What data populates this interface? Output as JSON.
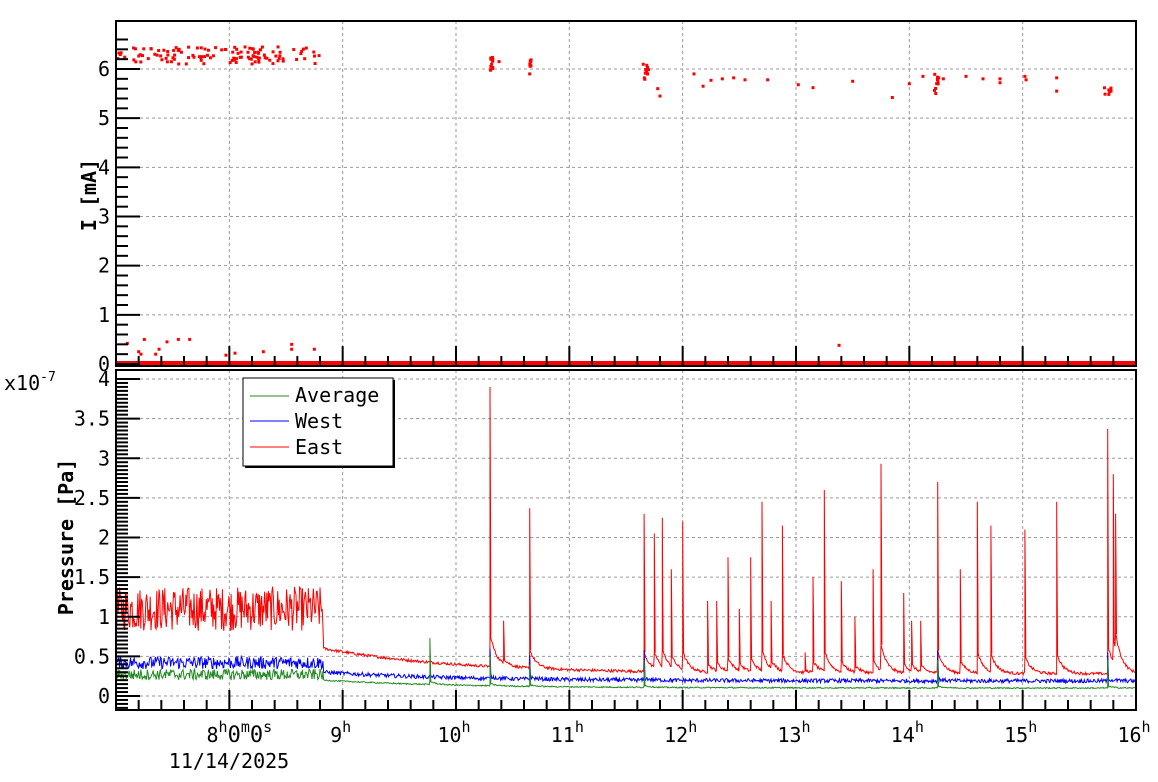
{
  "chart_data": [
    {
      "id": "current",
      "type": "scatter",
      "title": "",
      "xlabel": "",
      "ylabel": "I [mA]",
      "ylim": [
        -0.05,
        6.9
      ],
      "xlim_hours": [
        7.0,
        16.0
      ],
      "yticks": [
        0,
        1,
        2,
        3,
        4,
        5,
        6
      ],
      "grid": true,
      "series": [
        {
          "name": "I",
          "color": "#ff0000",
          "marker": "square",
          "description": "Beam current: ~6.2-6.4 mA between 7h00 and 8h50, then mostly ~0 with sparse points 5.4-6.2 mA",
          "clusters": [
            {
              "x_range": [
                7.0,
                8.8
              ],
              "y_range": [
                6.1,
                6.45
              ],
              "count": 120
            },
            {
              "x_range": [
                10.3,
                10.33
              ],
              "y_range": [
                5.95,
                6.25
              ],
              "count": 14
            },
            {
              "x_range": [
                10.65,
                10.67
              ],
              "y_range": [
                6.05,
                6.2
              ],
              "count": 6
            },
            {
              "x_range": [
                11.65,
                11.7
              ],
              "y_range": [
                5.75,
                6.1
              ],
              "count": 12
            },
            {
              "x_range": [
                14.22,
                14.26
              ],
              "y_range": [
                5.5,
                5.9
              ],
              "count": 10
            },
            {
              "x_range": [
                15.72,
                15.78
              ],
              "y_range": [
                5.45,
                5.7
              ],
              "count": 8
            }
          ],
          "points": [
            [
              10.38,
              6.15
            ],
            [
              10.65,
              5.9
            ],
            [
              11.78,
              5.6
            ],
            [
              11.8,
              5.45
            ],
            [
              12.1,
              5.9
            ],
            [
              12.18,
              5.65
            ],
            [
              12.25,
              5.77
            ],
            [
              12.35,
              5.8
            ],
            [
              12.45,
              5.82
            ],
            [
              12.55,
              5.78
            ],
            [
              12.75,
              5.78
            ],
            [
              13.02,
              5.68
            ],
            [
              13.15,
              5.62
            ],
            [
              13.5,
              5.75
            ],
            [
              13.85,
              5.42
            ],
            [
              14.0,
              5.7
            ],
            [
              14.12,
              5.85
            ],
            [
              14.3,
              5.8
            ],
            [
              14.5,
              5.85
            ],
            [
              14.65,
              5.8
            ],
            [
              14.8,
              5.8
            ],
            [
              14.8,
              5.72
            ],
            [
              15.02,
              5.85
            ],
            [
              15.03,
              5.78
            ],
            [
              15.3,
              5.82
            ],
            [
              15.3,
              5.55
            ],
            [
              7.1,
              0.42
            ],
            [
              7.2,
              0.25
            ],
            [
              7.22,
              0.2
            ],
            [
              7.25,
              0.5
            ],
            [
              7.35,
              0.2
            ],
            [
              7.38,
              0.3
            ],
            [
              7.45,
              0.45
            ],
            [
              7.55,
              0.5
            ],
            [
              7.65,
              0.5
            ],
            [
              7.97,
              0.18
            ],
            [
              8.05,
              0.22
            ],
            [
              8.3,
              0.25
            ],
            [
              8.55,
              0.4
            ],
            [
              8.55,
              0.3
            ],
            [
              8.75,
              0.3
            ],
            [
              13.38,
              0.38
            ]
          ],
          "baseline": {
            "x_range": [
              7.0,
              16.0
            ],
            "y": 0.0
          }
        }
      ]
    },
    {
      "id": "pressure",
      "type": "line",
      "title": "",
      "xlabel": "",
      "ylabel": "Pressure [Pa]",
      "y_scale_label": "x10-7",
      "y_multiplier": 1e-07,
      "ylim": [
        -0.17,
        4.05
      ],
      "xlim_hours": [
        7.0,
        16.0
      ],
      "yticks": [
        0,
        0.5,
        1,
        1.5,
        2,
        2.5,
        3,
        3.5,
        4
      ],
      "grid": true,
      "legend": {
        "position": "upper-left",
        "entries": [
          "Average",
          "West",
          "East"
        ]
      },
      "series": [
        {
          "name": "Average",
          "color": "#228b22",
          "segments": [
            {
              "x_range": [
                7.0,
                8.83
              ],
              "mean": 0.27,
              "noise": 0.07
            },
            {
              "x_range": [
                8.83,
                16.0
              ],
              "start": 0.2,
              "end": 0.1,
              "decay_after_spikes": true
            }
          ],
          "spikes": [
            [
              9.77,
              0.73
            ],
            [
              10.3,
              0.5
            ],
            [
              10.65,
              0.4
            ],
            [
              11.66,
              0.45
            ],
            [
              14.25,
              0.45
            ],
            [
              15.75,
              0.45
            ]
          ]
        },
        {
          "name": "West",
          "color": "#0000ff",
          "segments": [
            {
              "x_range": [
                7.0,
                8.83
              ],
              "mean": 0.42,
              "noise": 0.08
            },
            {
              "x_range": [
                8.83,
                16.0
              ],
              "start": 0.3,
              "end": 0.19,
              "decay_after_spikes": true
            }
          ],
          "spikes": [
            [
              10.3,
              0.6
            ],
            [
              10.65,
              0.52
            ],
            [
              11.66,
              0.58
            ],
            [
              14.25,
              0.58
            ],
            [
              15.75,
              0.55
            ]
          ]
        },
        {
          "name": "East",
          "color": "#ff0000",
          "segments": [
            {
              "x_range": [
                7.0,
                8.83
              ],
              "mean": 1.1,
              "noise": 0.28
            },
            {
              "x_range": [
                8.83,
                16.0
              ],
              "start": 0.6,
              "end": 0.28,
              "decay_after_spikes": true
            }
          ],
          "spikes": [
            [
              10.3,
              3.9
            ],
            [
              10.42,
              0.95
            ],
            [
              10.65,
              2.37
            ],
            [
              11.66,
              2.3
            ],
            [
              11.75,
              2.05
            ],
            [
              11.82,
              2.25
            ],
            [
              11.9,
              1.6
            ],
            [
              12.0,
              2.2
            ],
            [
              12.22,
              1.2
            ],
            [
              12.3,
              1.2
            ],
            [
              12.4,
              1.75
            ],
            [
              12.5,
              1.1
            ],
            [
              12.6,
              1.75
            ],
            [
              12.7,
              2.45
            ],
            [
              12.78,
              1.2
            ],
            [
              12.88,
              2.15
            ],
            [
              13.08,
              0.55
            ],
            [
              13.15,
              1.5
            ],
            [
              13.25,
              2.6
            ],
            [
              13.4,
              1.45
            ],
            [
              13.52,
              1.0
            ],
            [
              13.68,
              1.6
            ],
            [
              13.75,
              2.93
            ],
            [
              13.95,
              1.3
            ],
            [
              14.02,
              0.95
            ],
            [
              14.1,
              0.95
            ],
            [
              14.25,
              2.7
            ],
            [
              14.45,
              1.6
            ],
            [
              14.6,
              2.45
            ],
            [
              14.72,
              2.15
            ],
            [
              15.02,
              2.1
            ],
            [
              15.3,
              2.45
            ],
            [
              15.75,
              3.37
            ],
            [
              15.8,
              2.8
            ],
            [
              15.82,
              2.3
            ]
          ]
        }
      ]
    }
  ],
  "x_axis": {
    "tick_labels": [
      {
        "hour": 8,
        "label": "8h0m0s",
        "base": "8",
        "parts": [
          [
            "h",
            "0"
          ],
          [
            "m",
            "0"
          ],
          [
            "s",
            ""
          ]
        ]
      },
      {
        "hour": 9,
        "label": "9h"
      },
      {
        "hour": 10,
        "label": "10h"
      },
      {
        "hour": 11,
        "label": "11h"
      },
      {
        "hour": 12,
        "label": "12h"
      },
      {
        "hour": 13,
        "label": "13h"
      },
      {
        "hour": 14,
        "label": "14h"
      },
      {
        "hour": 15,
        "label": "15h"
      },
      {
        "hour": 16,
        "label": "16h"
      }
    ],
    "date_label": "11/14/2025"
  },
  "labels": {
    "top_ylabel": "I [mA]",
    "bottom_ylabel": "Pressure [Pa]",
    "exponent_base": "x10",
    "exponent_power": "-7",
    "date": "11/14/2025",
    "legend_average": "Average",
    "legend_west": "West",
    "legend_east": "East"
  }
}
